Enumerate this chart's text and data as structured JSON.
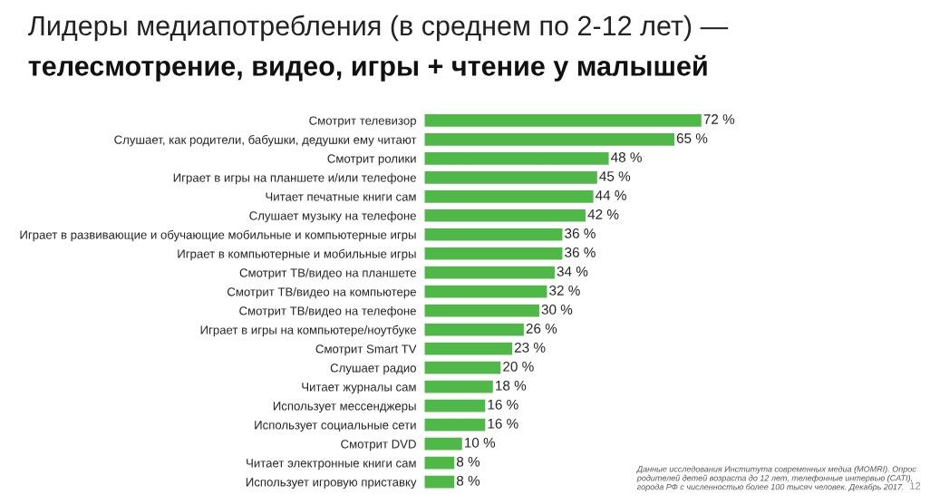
{
  "chart_data": {
    "type": "bar",
    "orientation": "horizontal",
    "title": "Лидеры медиапотребления (в среднем по 2-12 лет) —",
    "subtitle": "телесмотрение, видео, игры + чтение у малышей",
    "categories": [
      "Смотрит телевизор",
      "Слушает, как родители, бабушки, дедушки ему читают",
      "Смотрит ролики",
      "Играет в игры на планшете и/или телефоне",
      "Читает печатные книги сам",
      "Слушает музыку на телефоне",
      "Играет в развивающие и обучающие мобильные и компьютерные игры",
      "Играет в компьютерные и мобильные игры",
      "Смотрит ТВ/видео на планшете",
      "Смотрит ТВ/видео на компьютере",
      "Смотрит ТВ/видео на телефоне",
      "Играет в игры на компьютере/ноутбуке",
      "Смотрит Smart TV",
      "Слушает радио",
      "Читает журналы сам",
      "Использует мессенджеры",
      "Использует социальные сети",
      "Смотрит DVD",
      "Читает электронные книги сам",
      "Использует игровую приставку"
    ],
    "values": [
      72,
      65,
      48,
      45,
      44,
      42,
      36,
      36,
      34,
      32,
      30,
      26,
      23,
      20,
      18,
      16,
      16,
      10,
      8,
      8
    ],
    "value_labels": [
      "72 %",
      "65 %",
      "48 %",
      "45 %",
      "44 %",
      "42 %",
      "36 %",
      "36 %",
      "34 %",
      "32 %",
      "30 %",
      "26 %",
      "23 %",
      "20 %",
      "18 %",
      "16 %",
      "16 %",
      "10 %",
      "8 %",
      "8 %"
    ],
    "color": "#50b848",
    "annotations": [
      "Данные исследования Института современных медиа (MOMRI). Опрос родителей детей возраста до 12 лет, телефонные интервью (CATI), города РФ с численностью более 100 тысяч человек. Декабрь 2017.",
      "12"
    ]
  }
}
